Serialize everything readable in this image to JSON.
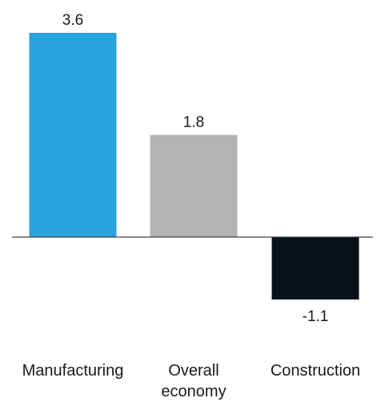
{
  "chart_data": {
    "type": "bar",
    "categories": [
      "Manufacturing",
      "Overall economy",
      "Construction"
    ],
    "category_label_lines": [
      [
        "Manufacturing"
      ],
      [
        "Overall",
        "economy"
      ],
      [
        "Construction"
      ]
    ],
    "values": [
      3.6,
      1.8,
      -1.1
    ],
    "value_labels": [
      "3.6",
      "1.8",
      "-1.1"
    ],
    "colors": [
      "#29a3dc",
      "#b3b3b3",
      "#0b111b"
    ],
    "ylim": [
      -1.1,
      3.6
    ],
    "title": "",
    "xlabel": "",
    "ylabel": "",
    "grid": false,
    "legend": "none"
  }
}
